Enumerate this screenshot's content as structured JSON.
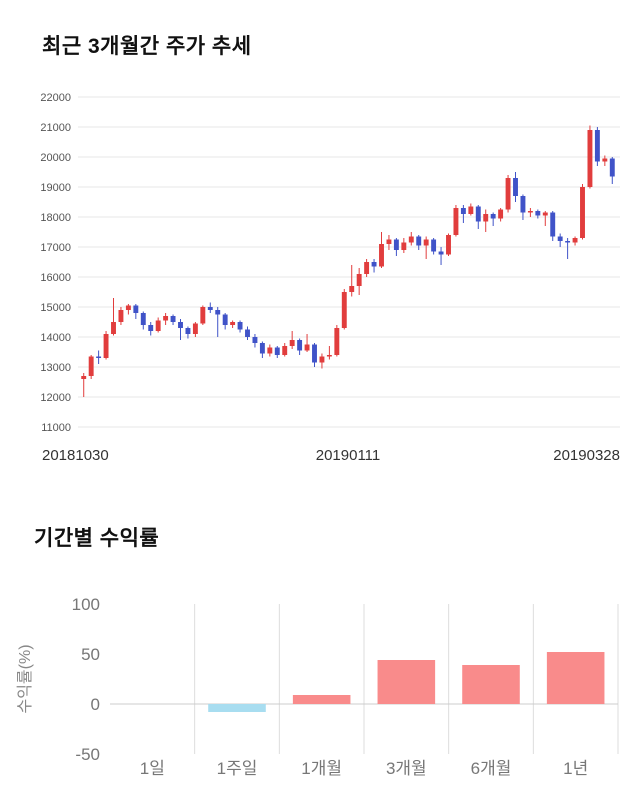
{
  "chart_data": [
    {
      "type": "candlestick",
      "title": "최근 3개월간 주가 추세",
      "ylim": [
        11000,
        22000
      ],
      "y_tick_step": 1000,
      "x_tick_labels": [
        "20181030",
        "20190111",
        "20190328"
      ],
      "up_color": "#e13d3d",
      "down_color": "#4053c8",
      "grid_color": "#e7e7e7",
      "tick_color": "#555555",
      "x_label_color": "#333333",
      "candles": [
        [
          12600,
          12800,
          12000,
          12700
        ],
        [
          12700,
          13400,
          12600,
          13350
        ],
        [
          13350,
          13550,
          13100,
          13300
        ],
        [
          13300,
          14200,
          13250,
          14100
        ],
        [
          14100,
          15300,
          14050,
          14500
        ],
        [
          14500,
          15000,
          14400,
          14900
        ],
        [
          14900,
          15100,
          14750,
          15050
        ],
        [
          15050,
          15100,
          14600,
          14800
        ],
        [
          14800,
          14850,
          14250,
          14400
        ],
        [
          14400,
          14500,
          14050,
          14200
        ],
        [
          14200,
          14650,
          14150,
          14550
        ],
        [
          14550,
          14800,
          14400,
          14700
        ],
        [
          14700,
          14750,
          14400,
          14500
        ],
        [
          14500,
          14600,
          13900,
          14300
        ],
        [
          14300,
          14350,
          13950,
          14100
        ],
        [
          14100,
          14500,
          14000,
          14450
        ],
        [
          14450,
          15050,
          14400,
          15000
        ],
        [
          15000,
          15150,
          14800,
          14900
        ],
        [
          14900,
          15000,
          14000,
          14750
        ],
        [
          14750,
          14800,
          14250,
          14400
        ],
        [
          14400,
          14550,
          14300,
          14500
        ],
        [
          14500,
          14550,
          14150,
          14250
        ],
        [
          14250,
          14350,
          13900,
          14000
        ],
        [
          14000,
          14100,
          13650,
          13800
        ],
        [
          13800,
          13850,
          13300,
          13450
        ],
        [
          13450,
          13750,
          13350,
          13650
        ],
        [
          13650,
          13700,
          13300,
          13400
        ],
        [
          13400,
          13800,
          13350,
          13700
        ],
        [
          13700,
          14200,
          13600,
          13900
        ],
        [
          13900,
          13950,
          13400,
          13550
        ],
        [
          13550,
          14100,
          13500,
          13750
        ],
        [
          13750,
          13800,
          13000,
          13150
        ],
        [
          13150,
          13450,
          12950,
          13350
        ],
        [
          13350,
          13700,
          13250,
          13400
        ],
        [
          13400,
          14400,
          13350,
          14300
        ],
        [
          14300,
          15600,
          14250,
          15500
        ],
        [
          15500,
          16400,
          15350,
          15700
        ],
        [
          15700,
          16300,
          15400,
          16100
        ],
        [
          16100,
          16600,
          16000,
          16500
        ],
        [
          16500,
          16600,
          16150,
          16350
        ],
        [
          16350,
          17500,
          16300,
          17100
        ],
        [
          17100,
          17400,
          16900,
          17250
        ],
        [
          17250,
          17300,
          16700,
          16900
        ],
        [
          16900,
          17300,
          16800,
          17150
        ],
        [
          17150,
          17500,
          17050,
          17350
        ],
        [
          17350,
          17400,
          16900,
          17050
        ],
        [
          17050,
          17350,
          16600,
          17250
        ],
        [
          17250,
          17300,
          16750,
          16850
        ],
        [
          16850,
          17000,
          16400,
          16750
        ],
        [
          16750,
          17450,
          16700,
          17400
        ],
        [
          17400,
          18400,
          17350,
          18300
        ],
        [
          18300,
          18400,
          17800,
          18100
        ],
        [
          18100,
          18450,
          18050,
          18350
        ],
        [
          18350,
          18400,
          17600,
          17850
        ],
        [
          17850,
          18250,
          17500,
          18100
        ],
        [
          18100,
          18150,
          17700,
          17950
        ],
        [
          17950,
          18300,
          17850,
          18250
        ],
        [
          18250,
          19400,
          18150,
          19300
        ],
        [
          19300,
          19500,
          18500,
          18700
        ],
        [
          18700,
          18750,
          17900,
          18150
        ],
        [
          18150,
          18300,
          18000,
          18200
        ],
        [
          18200,
          18250,
          17950,
          18050
        ],
        [
          18050,
          18200,
          17700,
          18150
        ],
        [
          18150,
          18200,
          17200,
          17350
        ],
        [
          17350,
          17450,
          17000,
          17200
        ],
        [
          17200,
          17300,
          16600,
          17150
        ],
        [
          17150,
          17350,
          17050,
          17300
        ],
        [
          17300,
          19100,
          17250,
          19000
        ],
        [
          19000,
          21050,
          18950,
          20900
        ],
        [
          20900,
          21000,
          19700,
          19850
        ],
        [
          19850,
          20050,
          19700,
          19950
        ],
        [
          19950,
          20000,
          19100,
          19350
        ]
      ]
    },
    {
      "type": "bar",
      "title": "기간별 수익률",
      "ylabel": "수익률(%)",
      "ylim": [
        -50,
        100
      ],
      "y_ticks": [
        100,
        50,
        0,
        -50
      ],
      "categories": [
        "1일",
        "1주일",
        "1개월",
        "3개월",
        "6개월",
        "1년"
      ],
      "values": [
        0,
        -8,
        9,
        44,
        39,
        52
      ],
      "positive_color": "#f98b8b",
      "negative_color": "#a8ddf0",
      "grid_color": "#dddddd",
      "zero_line_color": "#cccccc",
      "tick_color": "#777777",
      "axis_label_color": "#888888"
    }
  ]
}
